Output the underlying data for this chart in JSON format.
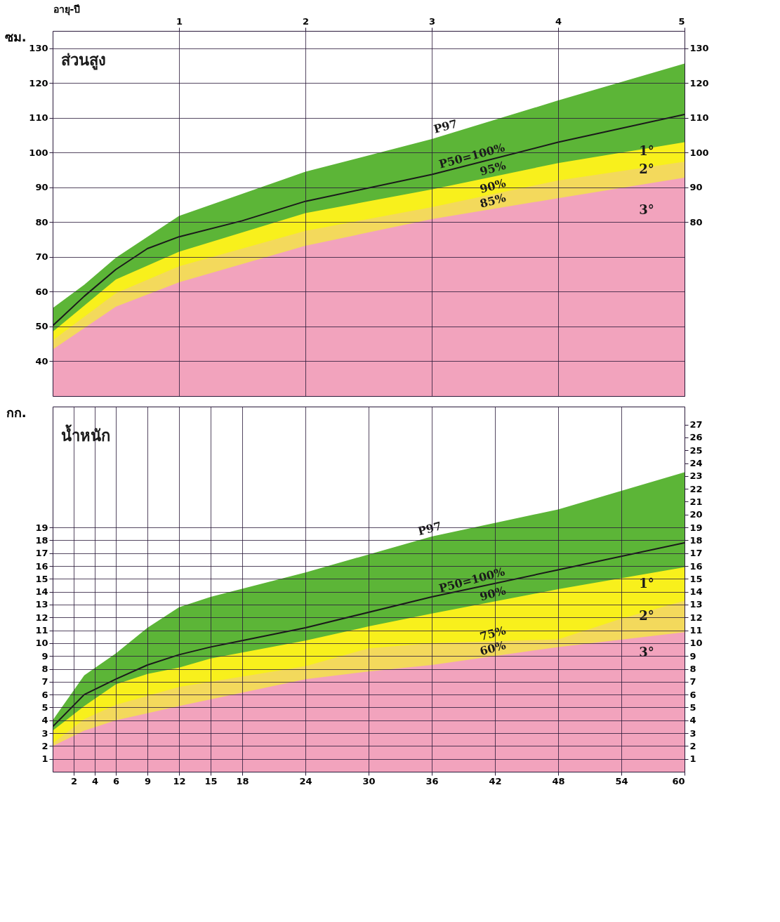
{
  "chart_data": [
    {
      "type": "area",
      "title": "ส่วนสูง",
      "ylabel": "ซม.",
      "x2label": "อายุ-ปี",
      "xlim": [
        0,
        60
      ],
      "x2lim": [
        0,
        5
      ],
      "x2ticks": [
        1,
        2,
        3,
        4,
        5
      ],
      "ylim": [
        30,
        135
      ],
      "yticks": [
        40,
        50,
        60,
        70,
        80,
        90,
        100,
        110,
        120,
        130
      ],
      "y2lim": [
        30,
        135
      ],
      "y2ticks": [
        80,
        90,
        100,
        110,
        120,
        130
      ],
      "grid": true,
      "series": [
        {
          "color": "#5cb537",
          "x": [
            0,
            3,
            6,
            12,
            24,
            36,
            48,
            60
          ],
          "values": [
            55.3,
            62,
            69.8,
            81.8,
            94.5,
            103.9,
            115,
            125.6
          ]
        },
        {
          "color": "#f8f01c",
          "x": [
            0,
            6,
            12,
            24,
            36,
            48,
            60
          ],
          "values": [
            48.5,
            63.5,
            71.5,
            82.6,
            89.4,
            97,
            103
          ]
        },
        {
          "color": "#f3d95c",
          "x": [
            0,
            6,
            12,
            24,
            36,
            48,
            60
          ],
          "values": [
            46,
            59.6,
            67.3,
            77.5,
            84.3,
            92,
            97.4
          ]
        },
        {
          "color": "#f2a3bd",
          "x": [
            0,
            6,
            12,
            24,
            36,
            48,
            60
          ],
          "values": [
            43.4,
            55.7,
            62.7,
            73.2,
            80.9,
            86.9,
            92.8
          ]
        },
        {
          "type": "line",
          "color": "#1a1a1a",
          "x": [
            0,
            3,
            6,
            9,
            12,
            18,
            24,
            36,
            48,
            60
          ],
          "values": [
            50.2,
            58.7,
            66.4,
            72.4,
            75.8,
            80.4,
            86,
            93.7,
            103,
            111
          ]
        }
      ],
      "annotations": [
        {
          "text": "P97",
          "x": 37.5,
          "y": 105.3
        },
        {
          "text": "P50=100%",
          "x": 40,
          "y": 96.8
        },
        {
          "text": "95%",
          "x": 42,
          "y": 93.2
        },
        {
          "text": "90%",
          "x": 42,
          "y": 88.15
        },
        {
          "text": "85%",
          "x": 42,
          "y": 83.9
        },
        "1°",
        "2°",
        "3°"
      ]
    },
    {
      "type": "area",
      "title": "น้ำหนัก",
      "ylabel": "กก.",
      "xlim": [
        0,
        60
      ],
      "xticks": [
        2,
        4,
        6,
        9,
        12,
        15,
        18,
        24,
        30,
        36,
        42,
        48,
        54,
        60
      ],
      "ylim": [
        0,
        28.4
      ],
      "yticks": [
        1,
        2,
        3,
        4,
        5,
        6,
        7,
        8,
        9,
        10,
        11,
        12,
        13,
        14,
        15,
        16,
        17,
        18,
        19
      ],
      "y2lim": [
        0,
        28.4
      ],
      "y2ticks": [
        1,
        2,
        3,
        4,
        5,
        6,
        7,
        8,
        9,
        10,
        11,
        12,
        13,
        14,
        15,
        16,
        17,
        18,
        19,
        20,
        21,
        22,
        23,
        24,
        25,
        26,
        27
      ],
      "grid": true,
      "series": [
        {
          "color": "#5cb537",
          "x": [
            0,
            3,
            6,
            9,
            12,
            15,
            24,
            36,
            48,
            60
          ],
          "values": [
            4,
            7.5,
            9.2,
            11.2,
            12.8,
            13.6,
            15.5,
            18.3,
            20.4,
            23.3
          ]
        },
        {
          "color": "#f8f01c",
          "x": [
            0,
            3,
            6,
            9,
            12,
            15,
            24,
            30,
            36,
            48,
            60
          ],
          "values": [
            3.2,
            5.1,
            6.8,
            7.6,
            8.1,
            8.8,
            10.2,
            11.3,
            12.3,
            14.2,
            15.9
          ]
        },
        {
          "color": "#f3d95c",
          "x": [
            0,
            3,
            6,
            12,
            24,
            30,
            36,
            48,
            54,
            60
          ],
          "values": [
            2.2,
            4.1,
            5.2,
            6.6,
            8.2,
            9.6,
            10,
            10.3,
            11.9,
            13.3
          ]
        },
        {
          "color": "#f2a3bd",
          "x": [
            0,
            3,
            6,
            12,
            24,
            30,
            36,
            48,
            60
          ],
          "values": [
            2,
            3.2,
            4,
            5.1,
            7.2,
            7.8,
            8.3,
            9.7,
            10.85
          ]
        },
        {
          "type": "line",
          "color": "#1a1a1a",
          "x": [
            0,
            3,
            6,
            9,
            12,
            15,
            18,
            24,
            36,
            48,
            60
          ],
          "values": [
            3.5,
            6,
            7.2,
            8.3,
            9.1,
            9.7,
            10.2,
            11.2,
            13.6,
            15.7,
            17.8
          ]
        }
      ],
      "annotations": [
        {
          "text": "P97",
          "x": 36,
          "y": 18.3
        },
        {
          "text": "P50=100%",
          "x": 40,
          "y": 14.3
        },
        {
          "text": "90%",
          "x": 42,
          "y": 13.25
        },
        {
          "text": "75%",
          "x": 42,
          "y": 10.15
        },
        {
          "text": "60%",
          "x": 42,
          "y": 9
        },
        "1°",
        "2°",
        "3°"
      ]
    }
  ]
}
